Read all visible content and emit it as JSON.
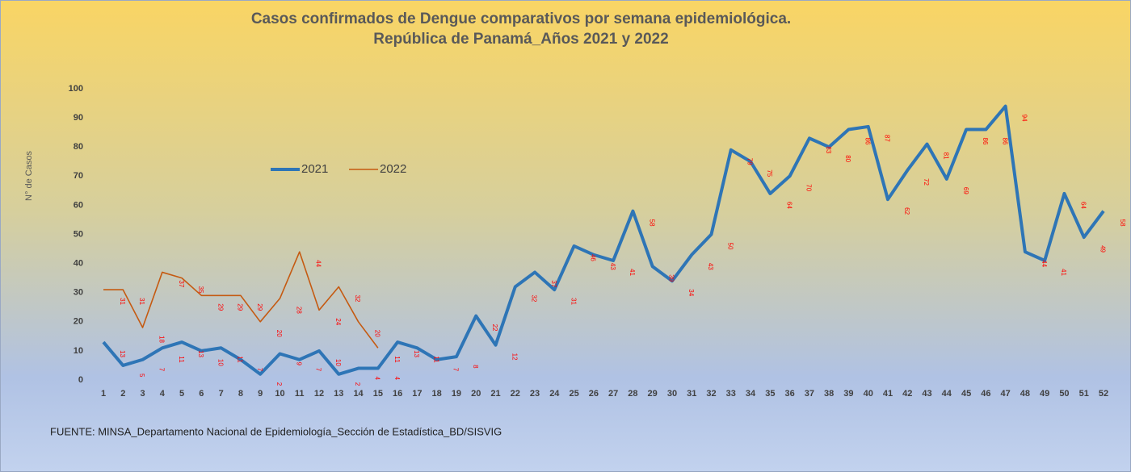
{
  "chart_data": {
    "type": "line",
    "title": "Casos confirmados de Dengue comparativos por semana epidemiológica.",
    "subtitle": "República de Panamá_Años 2021 y 2022",
    "y_label": "N° de Casos",
    "source": "FUENTE: MINSA_Departamento Nacional de Epidemiología_Sección de Estadística_BD/SISVIG",
    "categories": [
      "1",
      "2",
      "3",
      "4",
      "5",
      "6",
      "7",
      "8",
      "9",
      "10",
      "11",
      "12",
      "13",
      "14",
      "15",
      "16",
      "17",
      "18",
      "19",
      "20",
      "21",
      "22",
      "23",
      "24",
      "25",
      "26",
      "27",
      "28",
      "29",
      "30",
      "31",
      "32",
      "33",
      "34",
      "35",
      "36",
      "37",
      "38",
      "39",
      "40",
      "41",
      "42",
      "43",
      "44",
      "45",
      "46",
      "47",
      "48",
      "49",
      "50",
      "51",
      "52"
    ],
    "series": [
      {
        "name": "2021",
        "color": "#2e75b6",
        "values": [
          13,
          5,
          7,
          11,
          13,
          10,
          11,
          7,
          2,
          9,
          7,
          10,
          2,
          4,
          4,
          13,
          11,
          7,
          8,
          22,
          12,
          32,
          37,
          31,
          46,
          43,
          41,
          58,
          39,
          34,
          43,
          50,
          79,
          75,
          64,
          70,
          83,
          80,
          86,
          87,
          62,
          72,
          81,
          69,
          86,
          86,
          94,
          44,
          41,
          64,
          49,
          58
        ]
      },
      {
        "name": "2022",
        "color": "#c55a11",
        "values": [
          31,
          31,
          18,
          37,
          35,
          29,
          29,
          29,
          20,
          28,
          44,
          24,
          32,
          20,
          11,
          null,
          null,
          null,
          null,
          null,
          null,
          null,
          null,
          null,
          null,
          null,
          null,
          null,
          null,
          null,
          null,
          null,
          null,
          null,
          null,
          null,
          null,
          null,
          null,
          null,
          null,
          null,
          null,
          null,
          null,
          null,
          null,
          null,
          null,
          null,
          null,
          null
        ]
      }
    ],
    "label_color": "#ff0000",
    "ylim": [
      0,
      100
    ],
    "yticks": [
      0,
      10,
      20,
      30,
      40,
      50,
      60,
      70,
      80,
      90,
      100
    ],
    "legend": "center-left"
  }
}
